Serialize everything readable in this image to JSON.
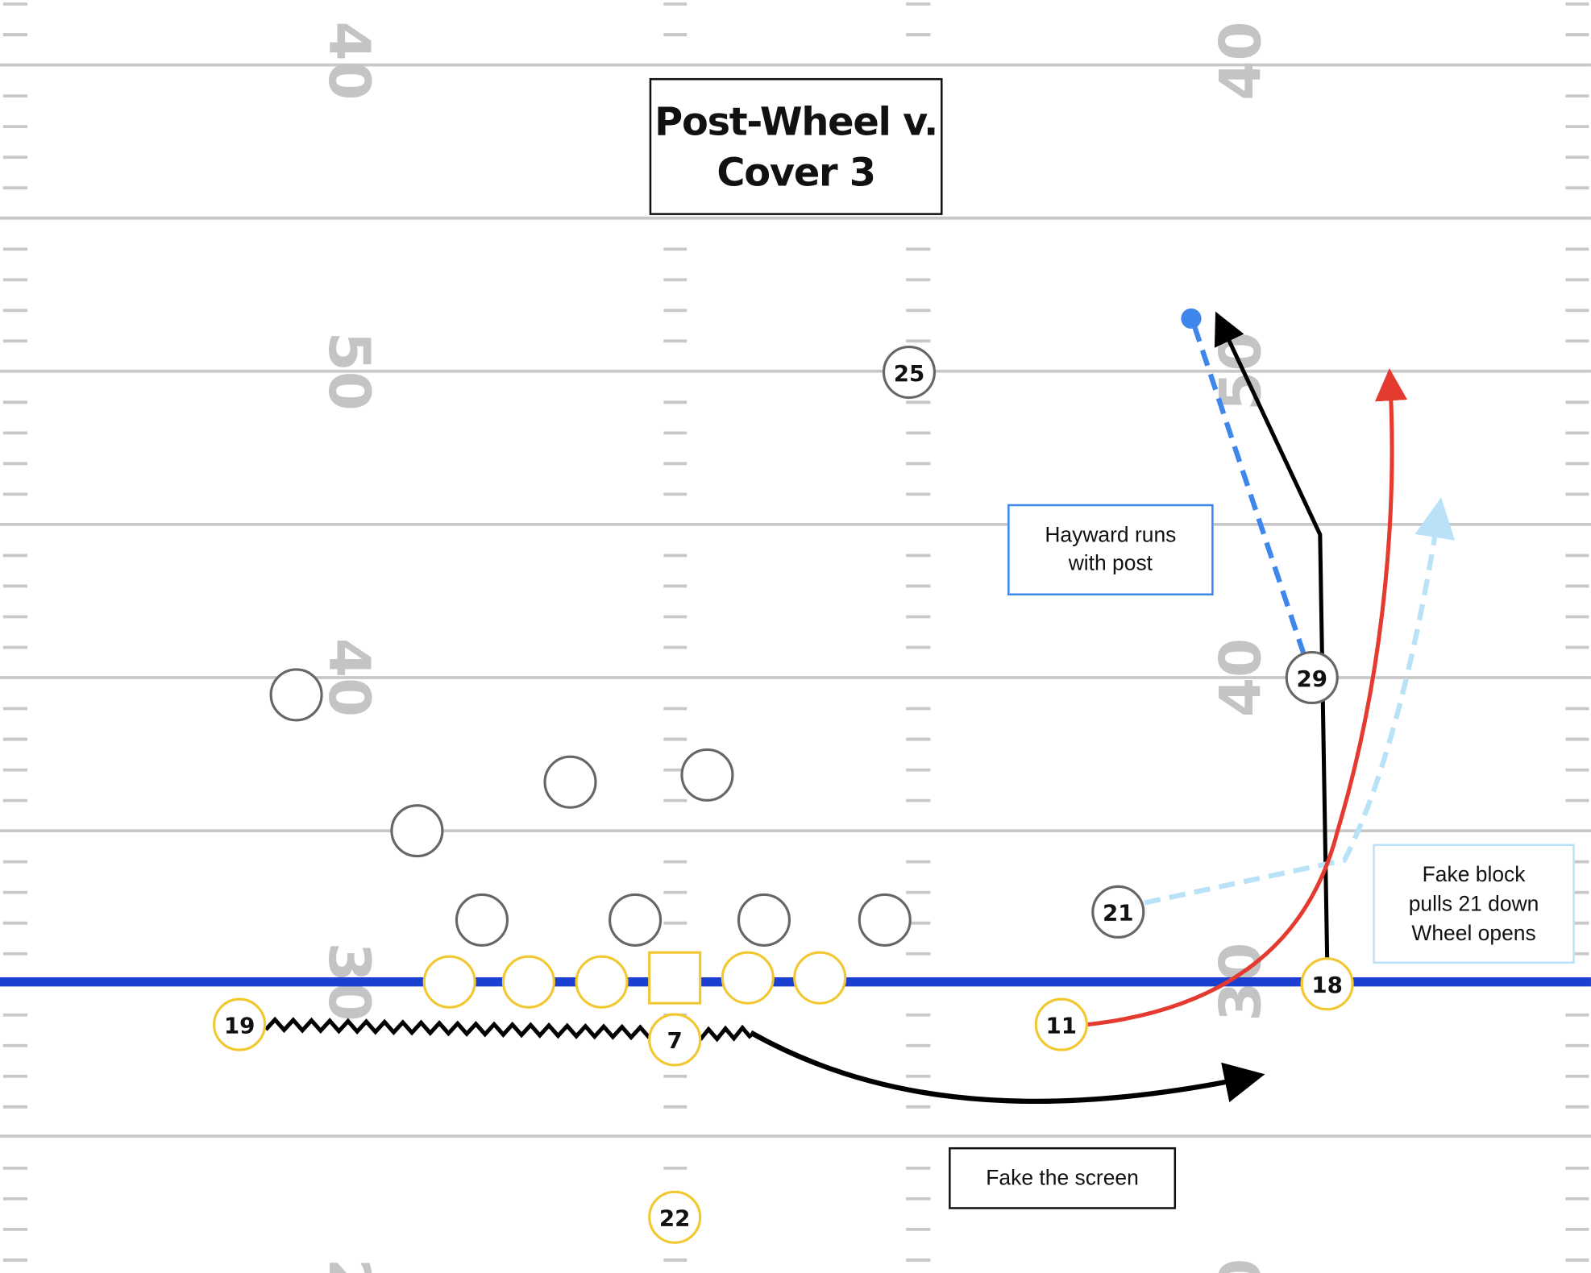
{
  "title": "Post-Wheel v. Cover 3",
  "title_lines": [
    "Post-Wheel v.",
    "Cover 3"
  ],
  "colors": {
    "line_of_scrimmage": "#1a3fd1",
    "offense": "#f2c832",
    "defense": "#666666",
    "post_route": "#000000",
    "wheel_route": "#e43a2f",
    "defender_21_path": "#b9e2f9",
    "defender_29_path": "#3d86ec",
    "field_lines": "#c8c8c8"
  },
  "field": {
    "left_numbers": [
      "40",
      "50",
      "40",
      "30",
      "2"
    ],
    "right_numbers": [
      "40",
      "50",
      "40",
      "30",
      "0"
    ]
  },
  "offense": {
    "linemen_count": 6,
    "players": [
      {
        "number": "19",
        "role": "receiver"
      },
      {
        "number": "7",
        "role": "quarterback"
      },
      {
        "number": "11",
        "role": "receiver"
      },
      {
        "number": "18",
        "role": "receiver"
      },
      {
        "number": "22",
        "role": "back"
      }
    ]
  },
  "defense": {
    "unlabeled_count": 8,
    "players": [
      {
        "number": "25"
      },
      {
        "number": "21"
      },
      {
        "number": "29"
      }
    ]
  },
  "annotations": {
    "hayward": [
      "Hayward runs",
      "with post"
    ],
    "fake_block": [
      "Fake block",
      "pulls 21 down",
      "Wheel opens"
    ],
    "fake_screen": "Fake the screen"
  }
}
